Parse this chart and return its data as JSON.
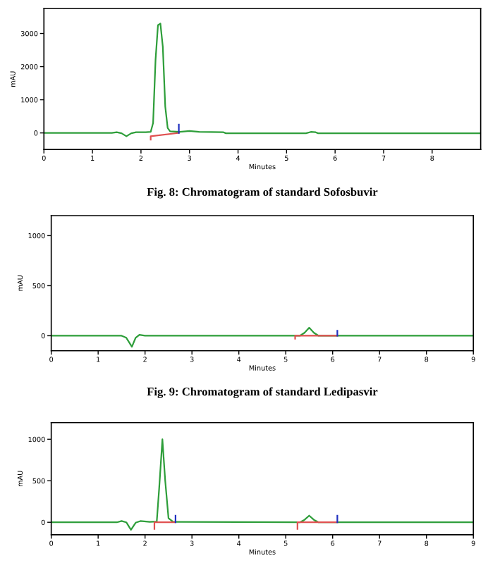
{
  "chart_data": [
    {
      "type": "line",
      "xlabel": "Minutes",
      "ylabel": "mAU",
      "xlim": [
        0,
        9
      ],
      "xticks": [
        0,
        1,
        2,
        3,
        4,
        5,
        6,
        7,
        8
      ],
      "ylim": [
        -500,
        3750
      ],
      "yticks": [
        0,
        1000,
        2000,
        3000
      ],
      "annotations": [
        "Fig. 8: Chromatogram of standard Sofosbuvir"
      ],
      "series": [
        {
          "color": "#2e9e3a",
          "x": [
            0,
            1.4,
            1.5,
            1.6,
            1.7,
            1.8,
            1.9,
            2.1,
            2.2,
            2.25,
            2.3,
            2.35,
            2.4,
            2.45,
            2.5,
            2.55,
            2.6,
            2.8,
            3.0,
            3.2,
            3.7,
            3.75,
            5.4,
            5.5,
            5.6,
            5.65,
            9
          ],
          "values": [
            0,
            0,
            20,
            -10,
            -100,
            -10,
            20,
            20,
            30,
            300,
            2200,
            3250,
            3300,
            2600,
            800,
            150,
            50,
            30,
            60,
            30,
            20,
            -10,
            -10,
            30,
            20,
            -10,
            -10
          ]
        },
        {
          "color": "#e05050",
          "x": [
            2.2,
            2.2,
            2.78
          ],
          "values": [
            -200,
            -100,
            0
          ]
        },
        {
          "color": "#2030c0",
          "x": [
            2.78,
            2.78
          ],
          "values": [
            0,
            250
          ]
        }
      ]
    },
    {
      "type": "line",
      "xlabel": "Minutes",
      "ylabel": "mAU",
      "xlim": [
        0,
        9
      ],
      "xticks": [
        0,
        1,
        2,
        3,
        4,
        5,
        6,
        7,
        8,
        9
      ],
      "ylim": [
        -150,
        1200
      ],
      "yticks": [
        0,
        500,
        1000
      ],
      "annotations": [
        "Fig. 9: Chromatogram of standard Ledipasvir"
      ],
      "series": [
        {
          "color": "#2e9e3a",
          "x": [
            0,
            1.5,
            1.6,
            1.72,
            1.8,
            1.88,
            2.0,
            5.3,
            5.4,
            5.5,
            5.6,
            5.7,
            9
          ],
          "values": [
            0,
            0,
            -20,
            -110,
            -20,
            10,
            0,
            0,
            30,
            80,
            30,
            0,
            0
          ]
        },
        {
          "color": "#e05050",
          "x": [
            5.2,
            5.2,
            6.1
          ],
          "values": [
            -30,
            0,
            0
          ]
        },
        {
          "color": "#2030c0",
          "x": [
            6.1,
            6.1
          ],
          "values": [
            0,
            50
          ]
        }
      ]
    },
    {
      "type": "line",
      "xlabel": "Minutes",
      "ylabel": "mAU",
      "xlim": [
        0,
        9
      ],
      "xticks": [
        0,
        1,
        2,
        3,
        4,
        5,
        6,
        7,
        8,
        9
      ],
      "ylim": [
        -150,
        1200
      ],
      "yticks": [
        0,
        500,
        1000
      ],
      "series": [
        {
          "color": "#2e9e3a",
          "x": [
            0,
            1.4,
            1.5,
            1.6,
            1.7,
            1.8,
            1.9,
            2.1,
            2.25,
            2.3,
            2.37,
            2.43,
            2.5,
            2.6,
            5.3,
            5.4,
            5.5,
            5.6,
            5.7,
            9
          ],
          "values": [
            0,
            0,
            15,
            0,
            -90,
            -5,
            15,
            5,
            10,
            400,
            1000,
            500,
            50,
            5,
            0,
            30,
            80,
            30,
            0,
            0
          ]
        },
        {
          "color": "#e05050",
          "x": [
            2.2,
            2.2,
            2.65,
            2.66,
            5.25,
            5.25,
            6.1
          ],
          "values": [
            -80,
            0,
            0,
            null,
            -80,
            0,
            0
          ]
        },
        {
          "color": "#2030c0",
          "x": [
            2.65,
            2.65,
            2.66,
            6.1,
            6.1
          ],
          "values": [
            0,
            80,
            null,
            0,
            80
          ]
        }
      ]
    }
  ]
}
